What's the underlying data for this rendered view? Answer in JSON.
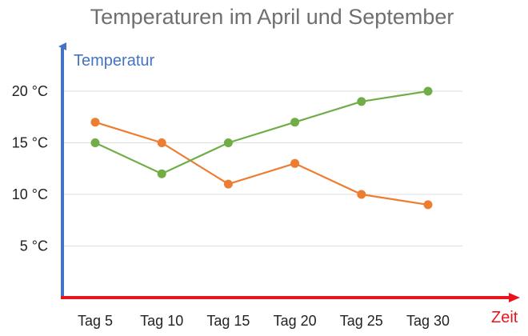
{
  "chart_data": {
    "type": "line",
    "title": "Temperaturen im April und September",
    "xlabel": "Zeit",
    "ylabel": "Temperatur",
    "categories": [
      "Tag 5",
      "Tag 10",
      "Tag 15",
      "Tag 20",
      "Tag 25",
      "Tag 30"
    ],
    "ylim": [
      0,
      25
    ],
    "yticks": [
      {
        "value": 5,
        "label": "5 °C"
      },
      {
        "value": 10,
        "label": "10 °C"
      },
      {
        "value": 15,
        "label": "15 °C"
      },
      {
        "value": 20,
        "label": "20 °C"
      }
    ],
    "grid": true,
    "legend": "none",
    "series": [
      {
        "color": "#ed7d31",
        "values": [
          17,
          15,
          11,
          13,
          10,
          9
        ]
      },
      {
        "color": "#70ad47",
        "values": [
          15,
          12,
          15,
          17,
          19,
          20
        ]
      }
    ],
    "colors": {
      "y_axis": "#4472c4",
      "x_axis": "#e8141c"
    }
  }
}
